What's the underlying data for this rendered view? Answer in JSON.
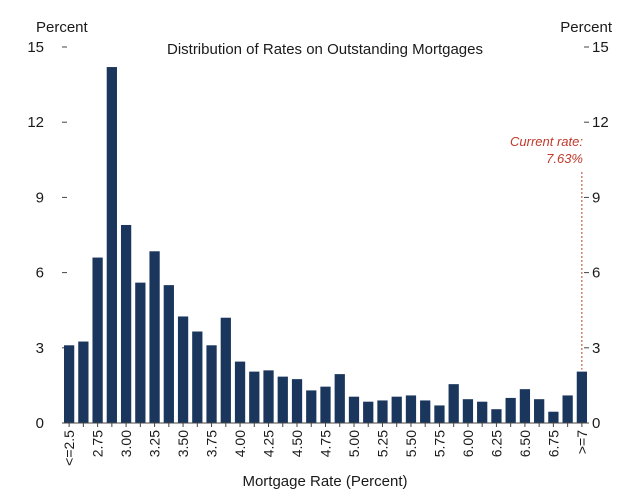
{
  "chart_data": {
    "type": "bar",
    "title": "Distribution of Rates on Outstanding Mortgages",
    "ylabel_left": "Percent",
    "ylabel_right": "Percent",
    "xlabel": "Mortgage Rate (Percent)",
    "ylim": [
      0,
      15
    ],
    "yticks": [
      0,
      3,
      6,
      9,
      12,
      15
    ],
    "categories": [
      "<=2.5",
      "2.625",
      "2.75",
      "2.875",
      "3.00",
      "3.125",
      "3.25",
      "3.375",
      "3.50",
      "3.625",
      "3.75",
      "3.875",
      "4.00",
      "4.125",
      "4.25",
      "4.375",
      "4.50",
      "4.625",
      "4.75",
      "4.875",
      "5.00",
      "5.125",
      "5.25",
      "5.375",
      "5.50",
      "5.625",
      "5.75",
      "5.875",
      "6.00",
      "6.125",
      "6.25",
      "6.375",
      "6.50",
      "6.625",
      "6.75",
      "6.875",
      ">=7"
    ],
    "xtick_labels": [
      "<=2.5",
      "",
      "2.75",
      "",
      "3.00",
      "",
      "3.25",
      "",
      "3.50",
      "",
      "3.75",
      "",
      "4.00",
      "",
      "4.25",
      "",
      "4.50",
      "",
      "4.75",
      "",
      "5.00",
      "",
      "5.25",
      "",
      "5.50",
      "",
      "5.75",
      "",
      "6.00",
      "",
      "6.25",
      "",
      "6.50",
      "",
      "6.75",
      "",
      ">=7"
    ],
    "values": [
      3.1,
      3.25,
      6.6,
      14.2,
      7.9,
      5.6,
      6.85,
      5.5,
      4.25,
      3.65,
      3.1,
      4.2,
      2.45,
      2.05,
      2.1,
      1.85,
      1.75,
      1.3,
      1.45,
      1.95,
      1.05,
      0.85,
      0.9,
      1.05,
      1.1,
      0.9,
      0.7,
      1.55,
      0.95,
      0.85,
      0.55,
      1.0,
      1.35,
      0.95,
      0.45,
      1.1,
      2.05
    ],
    "bar_color": "#1b365d",
    "grid": false,
    "annotation": {
      "line1": "Current rate:",
      "line2": "7.63%",
      "color": "#c0392b"
    }
  }
}
